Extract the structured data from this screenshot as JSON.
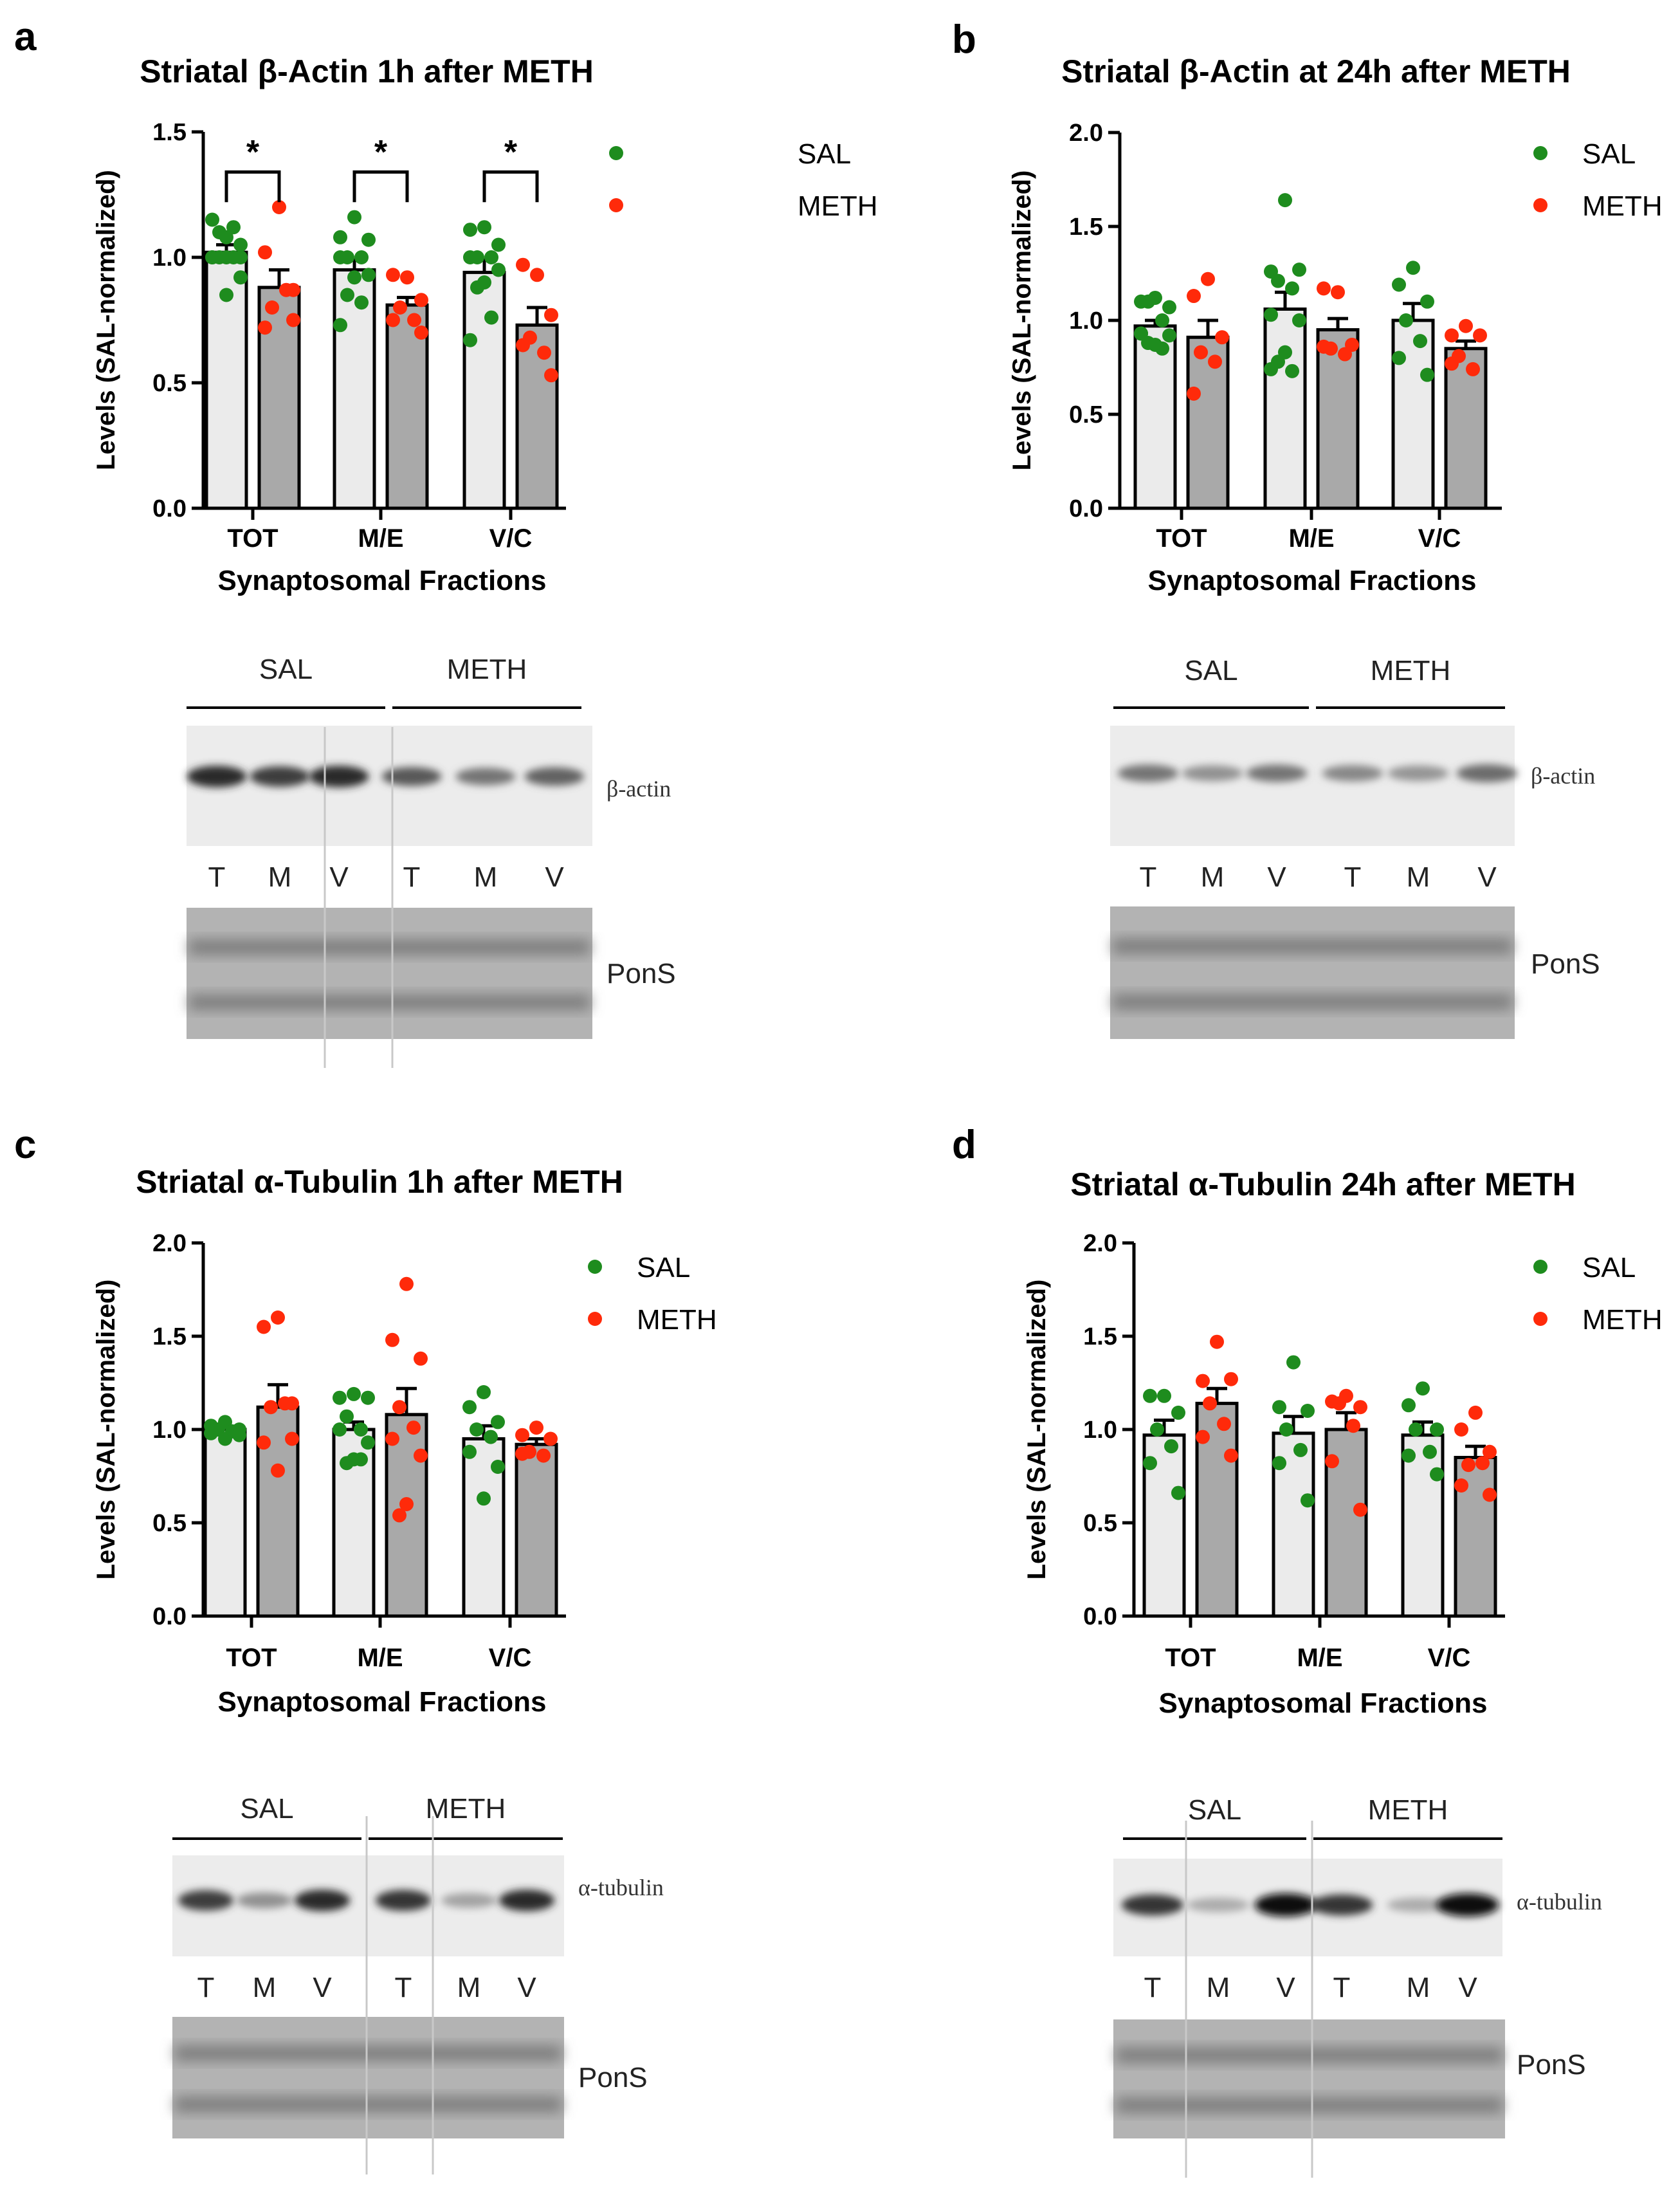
{
  "colors": {
    "sal_dot": "#1e8c1e",
    "meth_dot": "#ff2a0a",
    "sal_bar": "#ebebeb",
    "meth_bar": "#a9a9a9"
  },
  "chart_data": [
    {
      "letter": "a",
      "type": "bar",
      "title": "Striatal β-Actin 1h after METH",
      "ylabel": "Levels (SAL-normalized)",
      "xlabel": "Synaptosomal Fractions",
      "categories": [
        "TOT",
        "M/E",
        "V/C"
      ],
      "ylim": [
        0,
        1.5
      ],
      "yticks": [
        "0.0",
        "0.5",
        "1.0",
        "1.5"
      ],
      "legend": [
        "SAL",
        "METH"
      ],
      "legend_position": "top-right",
      "significance": [
        "*",
        "*",
        "*"
      ],
      "series": [
        {
          "name": "SAL",
          "mean": [
            1.02,
            0.95,
            0.94
          ],
          "sem": [
            0.03,
            0.04,
            0.05
          ],
          "points": [
            [
              1.0,
              1.0,
              1.0,
              1.0,
              1.0,
              1.0,
              1.05,
              1.08,
              1.1,
              1.12,
              1.15,
              0.92,
              0.85
            ],
            [
              1.16,
              1.08,
              1.07,
              1.0,
              1.0,
              1.0,
              0.93,
              0.92,
              0.85,
              0.82,
              0.73
            ],
            [
              1.12,
              1.11,
              1.05,
              1.0,
              1.0,
              1.0,
              0.95,
              0.9,
              0.88,
              0.76,
              0.67
            ]
          ]
        },
        {
          "name": "METH",
          "mean": [
            0.88,
            0.81,
            0.73
          ],
          "sem": [
            0.07,
            0.03,
            0.07
          ],
          "points": [
            [
              1.2,
              1.02,
              0.87,
              0.8,
              0.87,
              0.72,
              0.75
            ],
            [
              0.92,
              0.93,
              0.83,
              0.8,
              0.75,
              0.75,
              0.7
            ],
            [
              0.93,
              0.97,
              0.77,
              0.68,
              0.62,
              0.65,
              0.53
            ]
          ]
        }
      ],
      "blot": {
        "groups": [
          "SAL",
          "METH"
        ],
        "lanes": [
          "T",
          "M",
          "V",
          "T",
          "M",
          "V"
        ],
        "protein": "β-actin",
        "loading": "PonS",
        "band_intensity": [
          0.85,
          0.75,
          0.85,
          0.6,
          0.45,
          0.55
        ]
      }
    },
    {
      "letter": "b",
      "type": "bar",
      "title": "Striatal β-Actin at 24h after METH",
      "ylabel": "Levels (SAL-normalized)",
      "xlabel": "Synaptosomal Fractions",
      "categories": [
        "TOT",
        "M/E",
        "V/C"
      ],
      "ylim": [
        0,
        2.0
      ],
      "yticks": [
        "0.0",
        "0.5",
        "1.0",
        "1.5",
        "2.0"
      ],
      "legend": [
        "SAL",
        "METH"
      ],
      "legend_position": "top-right",
      "significance": [],
      "series": [
        {
          "name": "SAL",
          "mean": [
            0.97,
            1.06,
            1.0
          ],
          "sem": [
            0.03,
            0.09,
            0.09
          ],
          "points": [
            [
              1.12,
              1.1,
              1.07,
              1.1,
              1.0,
              0.93,
              0.92,
              0.87,
              0.88,
              0.85,
              0.93
            ],
            [
              1.64,
              1.26,
              1.27,
              1.21,
              1.17,
              1.03,
              1.0,
              0.83,
              0.78,
              0.73,
              0.74
            ],
            [
              1.28,
              1.19,
              1.1,
              1.0,
              0.89,
              0.8,
              0.71
            ]
          ]
        },
        {
          "name": "METH",
          "mean": [
            0.91,
            0.95,
            0.85
          ],
          "sem": [
            0.09,
            0.06,
            0.04
          ],
          "points": [
            [
              1.22,
              1.13,
              0.91,
              0.83,
              0.78,
              0.61
            ],
            [
              1.15,
              1.17,
              0.87,
              0.85,
              0.82,
              0.86
            ],
            [
              0.97,
              0.92,
              0.92,
              0.81,
              0.74,
              0.77
            ]
          ]
        }
      ],
      "blot": {
        "groups": [
          "SAL",
          "METH"
        ],
        "lanes": [
          "T",
          "M",
          "V",
          "T",
          "M",
          "V"
        ],
        "protein": "β-actin",
        "loading": "PonS",
        "band_intensity": [
          0.45,
          0.3,
          0.45,
          0.35,
          0.28,
          0.5
        ]
      }
    },
    {
      "letter": "c",
      "type": "bar",
      "title": "Striatal α-Tubulin 1h after METH",
      "ylabel": "Levels (SAL-normalized)",
      "xlabel": "Synaptosomal Fractions",
      "categories": [
        "TOT",
        "M/E",
        "V/C"
      ],
      "ylim": [
        0,
        2.0
      ],
      "yticks": [
        "0.0",
        "0.5",
        "1.0",
        "1.5",
        "2.0"
      ],
      "legend": [
        "SAL",
        "METH"
      ],
      "legend_position": "top-right",
      "significance": [],
      "series": [
        {
          "name": "SAL",
          "mean": [
            1.0,
            1.0,
            0.95
          ],
          "sem": [
            0.01,
            0.04,
            0.07
          ],
          "points": [
            [
              1.04,
              1.02,
              1.0,
              1.0,
              0.99,
              0.98,
              0.97,
              0.95
            ],
            [
              1.19,
              1.17,
              1.17,
              1.07,
              1.0,
              1.0,
              0.93,
              0.84,
              0.82,
              0.84
            ],
            [
              1.2,
              1.12,
              1.04,
              1.0,
              0.96,
              0.88,
              0.8,
              0.63
            ]
          ]
        },
        {
          "name": "METH",
          "mean": [
            1.12,
            1.08,
            0.92
          ],
          "sem": [
            0.12,
            0.14,
            0.03
          ],
          "points": [
            [
              1.6,
              1.55,
              1.14,
              1.12,
              1.14,
              0.93,
              0.95,
              0.78
            ],
            [
              1.78,
              1.48,
              1.38,
              1.12,
              1.01,
              0.95,
              0.86,
              0.6,
              0.54
            ],
            [
              1.01,
              0.97,
              0.95,
              0.88,
              0.86,
              0.87
            ]
          ]
        }
      ],
      "blot": {
        "groups": [
          "SAL",
          "METH"
        ],
        "lanes": [
          "T",
          "M",
          "V",
          "T",
          "M",
          "V"
        ],
        "protein": "α-tubulin",
        "loading": "PonS",
        "band_intensity": [
          0.75,
          0.3,
          0.85,
          0.8,
          0.2,
          0.85
        ]
      }
    },
    {
      "letter": "d",
      "type": "bar",
      "title": "Striatal α-Tubulin 24h after METH",
      "ylabel": "Levels (SAL-normalized)",
      "xlabel": "Synaptosomal Fractions",
      "categories": [
        "TOT",
        "M/E",
        "V/C"
      ],
      "ylim": [
        0,
        2.0
      ],
      "yticks": [
        "0.0",
        "0.5",
        "1.0",
        "1.5",
        "2.0"
      ],
      "legend": [
        "SAL",
        "METH"
      ],
      "legend_position": "top-right",
      "significance": [],
      "series": [
        {
          "name": "SAL",
          "mean": [
            0.97,
            0.98,
            0.97
          ],
          "sem": [
            0.08,
            0.09,
            0.07
          ],
          "points": [
            [
              1.18,
              1.18,
              1.09,
              1.0,
              0.91,
              0.82,
              0.66
            ],
            [
              1.36,
              1.12,
              1.1,
              1.0,
              0.89,
              0.82,
              0.62
            ],
            [
              1.22,
              1.13,
              1.0,
              1.0,
              0.88,
              0.86,
              0.76
            ]
          ]
        },
        {
          "name": "METH",
          "mean": [
            1.14,
            1.0,
            0.85
          ],
          "sem": [
            0.08,
            0.09,
            0.06
          ],
          "points": [
            [
              1.47,
              1.26,
              1.27,
              1.14,
              1.03,
              0.96,
              0.86
            ],
            [
              1.18,
              1.15,
              1.12,
              1.14,
              1.02,
              0.83,
              0.57
            ],
            [
              1.09,
              1.0,
              0.88,
              0.81,
              0.82,
              0.7,
              0.65
            ]
          ]
        }
      ],
      "blot": {
        "groups": [
          "SAL",
          "METH"
        ],
        "lanes": [
          "T",
          "M",
          "V",
          "T",
          "M",
          "V"
        ],
        "protein": "α-tubulin",
        "loading": "PonS",
        "band_intensity": [
          0.8,
          0.15,
          1.0,
          0.8,
          0.15,
          1.0
        ]
      }
    }
  ]
}
